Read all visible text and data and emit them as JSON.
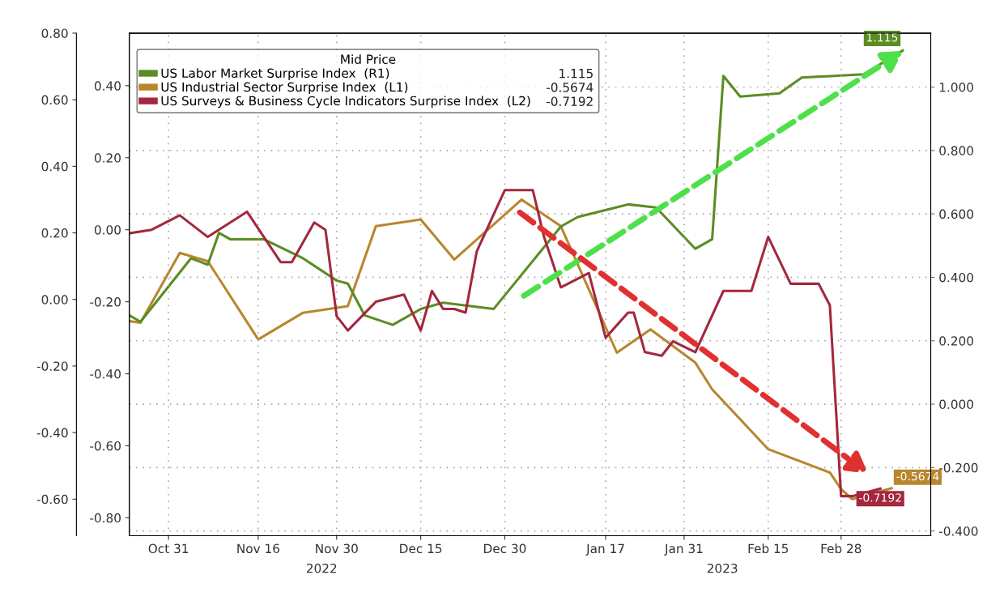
{
  "chart_data": {
    "type": "line",
    "legend_title": "Mid Price",
    "legend": "top left",
    "grid": true,
    "marker": "none",
    "line_style": "solid",
    "annotations": [
      "2022",
      "2023"
    ],
    "xlim": [
      "2022-10-24",
      "2023-03-16"
    ],
    "xticks": [
      {
        "value": "2022-10-31",
        "label": "Oct 31"
      },
      {
        "value": "2022-11-16",
        "label": "Nov 16"
      },
      {
        "value": "2022-11-30",
        "label": "Nov 30"
      },
      {
        "value": "2022-12-15",
        "label": "Dec 15"
      },
      {
        "value": "2022-12-30",
        "label": "Dec 30"
      },
      {
        "value": "2023-01-17",
        "label": "Jan 17"
      },
      {
        "value": "2023-01-31",
        "label": "Jan 31"
      },
      {
        "value": "2023-02-15",
        "label": "Feb 15"
      },
      {
        "value": "2023-02-28",
        "label": "Feb 28"
      }
    ],
    "ylim": [
      -0.85,
      0.546
    ],
    "yticks": [
      {
        "value": 0.4,
        "label": "0.40"
      },
      {
        "value": 0.2,
        "label": "0.20"
      },
      {
        "value": 0,
        "label": "0.00"
      },
      {
        "value": -0.2,
        "label": "-0.20"
      },
      {
        "value": -0.4,
        "label": "-0.40"
      },
      {
        "value": -0.6,
        "label": "-0.60"
      },
      {
        "value": -0.8,
        "label": "-0.80"
      }
    ],
    "y2lim": [
      -0.415,
      1.17
    ],
    "y2ticks": [
      {
        "value": 1.0,
        "label": "1.000"
      },
      {
        "value": 0.8,
        "label": "0.800"
      },
      {
        "value": 0.6,
        "label": "0.600"
      },
      {
        "value": 0.4,
        "label": "0.400"
      },
      {
        "value": 0.2,
        "label": "0.200"
      },
      {
        "value": 0,
        "label": "0.000"
      },
      {
        "value": -0.2,
        "label": "-0.200"
      },
      {
        "value": -0.4,
        "label": "-0.400"
      }
    ],
    "y3lim": [
      -0.71,
      0.8
    ],
    "y3ticks": [
      {
        "value": 0.8,
        "label": "0.80"
      },
      {
        "value": 0.6,
        "label": "0.60"
      },
      {
        "value": 0.4,
        "label": "0.40"
      },
      {
        "value": 0.2,
        "label": "0.20"
      },
      {
        "value": 0,
        "label": "0.00"
      },
      {
        "value": -0.2,
        "label": "-0.20"
      },
      {
        "value": -0.4,
        "label": "-0.40"
      },
      {
        "value": -0.6,
        "label": "-0.60"
      }
    ],
    "series": [
      {
        "name": "US Labor Market Surprise Index  (R1)",
        "color": "#5b8c24",
        "axis": "y2",
        "x": [
          "2022-10-24",
          "2022-10-26",
          "2022-11-04",
          "2022-11-07",
          "2022-11-09",
          "2022-11-11",
          "2022-11-17",
          "2022-11-24",
          "2022-11-30",
          "2022-12-02",
          "2022-12-05",
          "2022-12-10",
          "2022-12-15",
          "2022-12-19",
          "2022-12-28",
          "2023-01-09",
          "2023-01-12",
          "2023-01-21",
          "2023-01-26",
          "2023-02-02",
          "2023-02-05",
          "2023-02-07",
          "2023-02-10",
          "2023-02-17",
          "2023-02-21",
          "2023-03-04",
          "2023-03-11"
        ],
        "values": [
          0.28,
          0.26,
          0.46,
          0.44,
          0.54,
          0.52,
          0.52,
          0.46,
          0.39,
          0.38,
          0.28,
          0.25,
          0.3,
          0.32,
          0.3,
          0.56,
          0.59,
          0.63,
          0.62,
          0.49,
          0.52,
          1.035,
          0.97,
          0.98,
          1.03,
          1.04,
          1.115
        ],
        "value_labels": [
          null,
          null,
          null,
          null,
          null,
          null,
          null,
          null,
          null,
          null,
          null,
          null,
          null,
          null,
          null,
          null,
          null,
          null,
          null,
          null,
          null,
          null,
          null,
          null,
          null,
          null,
          "1.115"
        ]
      },
      {
        "name": "US Industrial Sector Surprise Index  (L1)",
        "color": "#b8862e",
        "axis": "y3",
        "x": [
          "2022-10-24",
          "2022-10-26",
          "2022-11-02",
          "2022-11-07",
          "2022-11-16",
          "2022-11-24",
          "2022-12-02",
          "2022-12-07",
          "2022-12-15",
          "2022-12-21",
          "2023-01-02",
          "2023-01-09",
          "2023-01-19",
          "2023-01-25",
          "2023-02-02",
          "2023-02-05",
          "2023-02-15",
          "2023-02-26",
          "2023-02-28",
          "2023-03-02",
          "2023-03-09"
        ],
        "values": [
          -0.065,
          -0.07,
          0.14,
          0.115,
          -0.12,
          -0.04,
          -0.02,
          0.22,
          0.24,
          0.12,
          0.3,
          0.22,
          -0.16,
          -0.09,
          -0.19,
          -0.27,
          -0.45,
          -0.52,
          -0.57,
          -0.6,
          -0.5674
        ],
        "value_labels": [
          null,
          null,
          null,
          null,
          null,
          null,
          null,
          null,
          null,
          null,
          null,
          null,
          null,
          null,
          null,
          null,
          null,
          null,
          null,
          null,
          "-0.5674"
        ]
      },
      {
        "name": "US Surveys & Business Cycle Indicators Surprise Index  (L2)",
        "color": "#a3283f",
        "axis": "y",
        "x": [
          "2022-10-24",
          "2022-10-28",
          "2022-11-02",
          "2022-11-07",
          "2022-11-14",
          "2022-11-20",
          "2022-11-22",
          "2022-11-26",
          "2022-11-28",
          "2022-11-30",
          "2022-12-02",
          "2022-12-07",
          "2022-12-12",
          "2022-12-15",
          "2022-12-17",
          "2022-12-19",
          "2022-12-21",
          "2022-12-23",
          "2022-12-25",
          "2022-12-30",
          "2023-01-04",
          "2023-01-06",
          "2023-01-09",
          "2023-01-14",
          "2023-01-17",
          "2023-01-21",
          "2023-01-22",
          "2023-01-24",
          "2023-01-27",
          "2023-01-29",
          "2023-02-02",
          "2023-02-07",
          "2023-02-12",
          "2023-02-15",
          "2023-02-19",
          "2023-02-24",
          "2023-02-26",
          "2023-02-28",
          "2023-03-02",
          "2023-03-07"
        ],
        "values": [
          -0.01,
          0.0,
          0.04,
          -0.02,
          0.05,
          -0.09,
          -0.09,
          0.02,
          0.0,
          -0.24,
          -0.28,
          -0.2,
          -0.18,
          -0.28,
          -0.17,
          -0.22,
          -0.22,
          -0.23,
          -0.06,
          0.11,
          0.11,
          -0.02,
          -0.16,
          -0.12,
          -0.3,
          -0.23,
          -0.23,
          -0.34,
          -0.35,
          -0.31,
          -0.34,
          -0.17,
          -0.17,
          -0.02,
          -0.15,
          -0.15,
          -0.21,
          -0.74,
          -0.74,
          -0.7192
        ],
        "value_labels": [
          null,
          null,
          null,
          null,
          null,
          null,
          null,
          null,
          null,
          null,
          null,
          null,
          null,
          null,
          null,
          null,
          null,
          null,
          null,
          null,
          null,
          null,
          null,
          null,
          null,
          null,
          null,
          null,
          null,
          null,
          null,
          null,
          null,
          null,
          null,
          null,
          null,
          null,
          null,
          "-0.7192"
        ]
      }
    ]
  }
}
